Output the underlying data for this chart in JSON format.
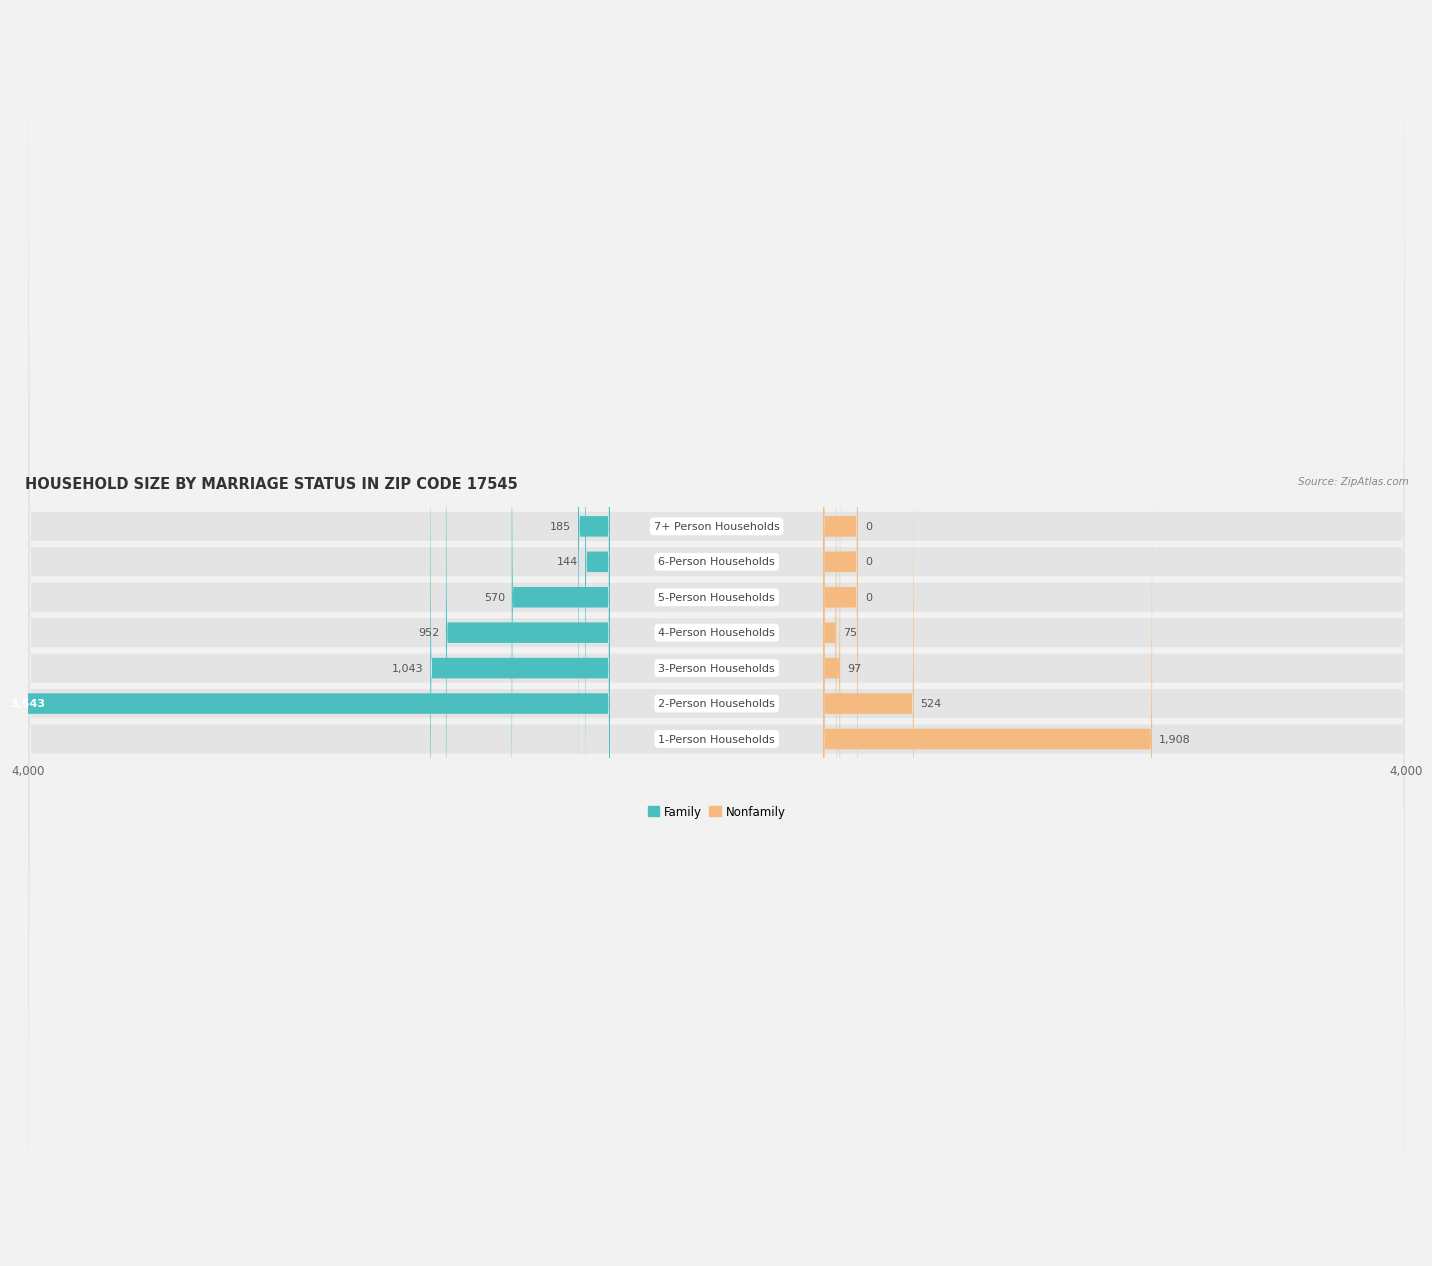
{
  "title": "HOUSEHOLD SIZE BY MARRIAGE STATUS IN ZIP CODE 17545",
  "source": "Source: ZipAtlas.com",
  "categories": [
    "1-Person Households",
    "2-Person Households",
    "3-Person Households",
    "4-Person Households",
    "5-Person Households",
    "6-Person Households",
    "7+ Person Households"
  ],
  "family_values": [
    0,
    3543,
    1043,
    952,
    570,
    144,
    185
  ],
  "nonfamily_values": [
    1908,
    524,
    97,
    75,
    0,
    0,
    0
  ],
  "family_color": "#4BBFC0",
  "nonfamily_color": "#F5BA80",
  "axis_max": 4000,
  "bg_color": "#f2f2f2",
  "row_bg_color": "#e4e4e4",
  "title_fontsize": 10.5,
  "source_fontsize": 7.5,
  "label_fontsize": 8,
  "value_fontsize": 8,
  "tick_fontsize": 8.5,
  "nonfamily_stub": 200
}
